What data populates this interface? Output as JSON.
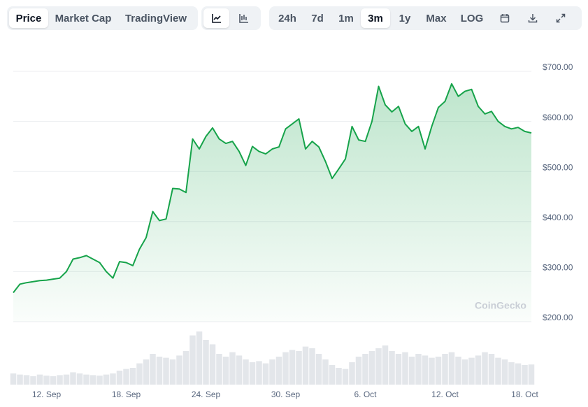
{
  "toolbar": {
    "tabs": [
      "Price",
      "Market Cap",
      "TradingView"
    ],
    "ranges": [
      "24h",
      "7d",
      "1m",
      "3m",
      "1y",
      "Max",
      "LOG"
    ]
  },
  "chart_data": {
    "type": "line",
    "watermark": "CoinGecko",
    "categories": [
      null,
      null,
      null,
      null,
      null,
      "12. Sep",
      null,
      null,
      null,
      null,
      null,
      null,
      null,
      null,
      null,
      null,
      null,
      "18. Sep",
      null,
      null,
      null,
      null,
      null,
      null,
      null,
      null,
      null,
      null,
      null,
      "24. Sep",
      null,
      null,
      null,
      null,
      null,
      null,
      null,
      null,
      null,
      null,
      null,
      "30. Sep",
      null,
      null,
      null,
      null,
      null,
      null,
      null,
      null,
      null,
      null,
      null,
      "6. Oct",
      null,
      null,
      null,
      null,
      null,
      null,
      null,
      null,
      null,
      null,
      null,
      "12. Oct",
      null,
      null,
      null,
      null,
      null,
      null,
      null,
      null,
      null,
      null,
      null,
      "18. Oct",
      null
    ],
    "series": [
      {
        "color": "#16a34a",
        "values": [
          258,
          275,
          278,
          280,
          282,
          283,
          285,
          287,
          300,
          325,
          328,
          332,
          325,
          318,
          300,
          287,
          320,
          318,
          312,
          345,
          368,
          420,
          402,
          405,
          466,
          465,
          458,
          565,
          545,
          570,
          587,
          565,
          556,
          560,
          540,
          512,
          550,
          540,
          535,
          545,
          549,
          585,
          595,
          605,
          545,
          560,
          549,
          520,
          486,
          505,
          525,
          590,
          563,
          560,
          600,
          670,
          633,
          619,
          630,
          595,
          580,
          590,
          545,
          590,
          628,
          640,
          675,
          650,
          660,
          664,
          630,
          615,
          620,
          600,
          590,
          585,
          588,
          580,
          577
        ]
      }
    ],
    "volume": {
      "color": "#e3e6ea",
      "ylim": [
        0,
        100
      ],
      "values": [
        20,
        18,
        17,
        15,
        18,
        16,
        15,
        17,
        18,
        22,
        20,
        18,
        17,
        16,
        18,
        20,
        25,
        28,
        30,
        38,
        45,
        55,
        50,
        48,
        45,
        52,
        60,
        88,
        95,
        80,
        72,
        55,
        50,
        58,
        52,
        45,
        40,
        42,
        38,
        45,
        50,
        58,
        62,
        60,
        68,
        65,
        55,
        45,
        35,
        30,
        28,
        40,
        50,
        55,
        60,
        65,
        70,
        60,
        55,
        58,
        50,
        55,
        52,
        48,
        50,
        55,
        58,
        50,
        45,
        48,
        52,
        58,
        55,
        48,
        45,
        40,
        38,
        35,
        36
      ]
    },
    "ylim": [
      200,
      700
    ],
    "yticks": [
      {
        "value": 200,
        "label": "$200.00"
      },
      {
        "value": 300,
        "label": "$300.00"
      },
      {
        "value": 400,
        "label": "$400.00"
      },
      {
        "value": 500,
        "label": "$500.00"
      },
      {
        "value": 600,
        "label": "$600.00"
      },
      {
        "value": 700,
        "label": "$700.00"
      }
    ],
    "grid": true
  }
}
